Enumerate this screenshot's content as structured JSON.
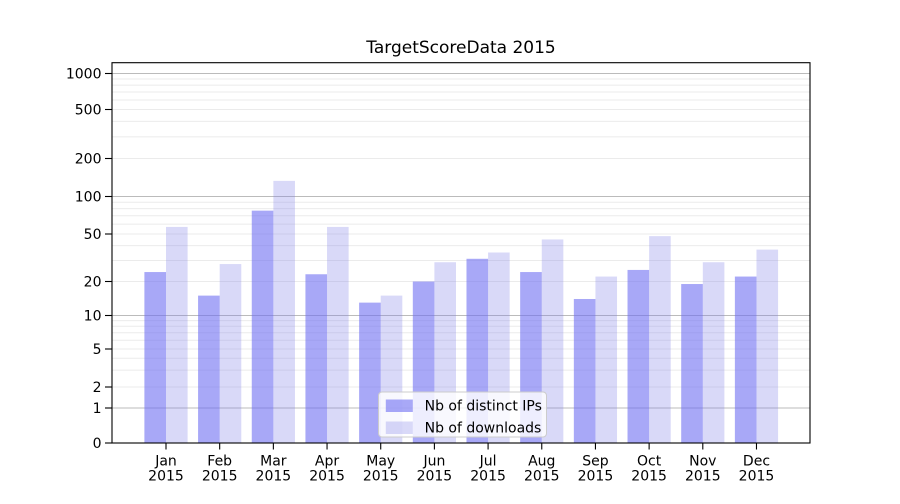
{
  "chart_data": {
    "type": "bar",
    "title": "TargetScoreData 2015",
    "categories": [
      "Jan",
      "Feb",
      "Mar",
      "Apr",
      "May",
      "Jun",
      "Jul",
      "Aug",
      "Sep",
      "Oct",
      "Nov",
      "Dec"
    ],
    "x_sublabel": "2015",
    "series": [
      {
        "name": "Nb of distinct IPs",
        "color": "rgba(110,110,242,0.6)",
        "color_hex": "#a8a8f5",
        "values": [
          24,
          15,
          77,
          23,
          13,
          20,
          31,
          24,
          14,
          25,
          19,
          22
        ]
      },
      {
        "name": "Nb of downloads",
        "color": "rgba(128,128,232,0.3)",
        "color_hex": "#d9d9f8",
        "values": [
          57,
          28,
          133,
          57,
          15,
          29,
          35,
          45,
          22,
          48,
          29,
          37
        ]
      }
    ],
    "y_ticks": [
      0,
      1,
      2,
      5,
      10,
      20,
      50,
      100,
      200,
      500,
      1000
    ],
    "y_scale": "symlog",
    "ylim": [
      0,
      1228
    ],
    "xlabel": "",
    "ylabel": "",
    "grid": true,
    "legend_position": "lower center",
    "colors": {
      "major_gridline": "#bbbbbb",
      "minor_gridline": "#ebebeb",
      "spine": "#000000",
      "legend_border": "#cccccc"
    }
  }
}
